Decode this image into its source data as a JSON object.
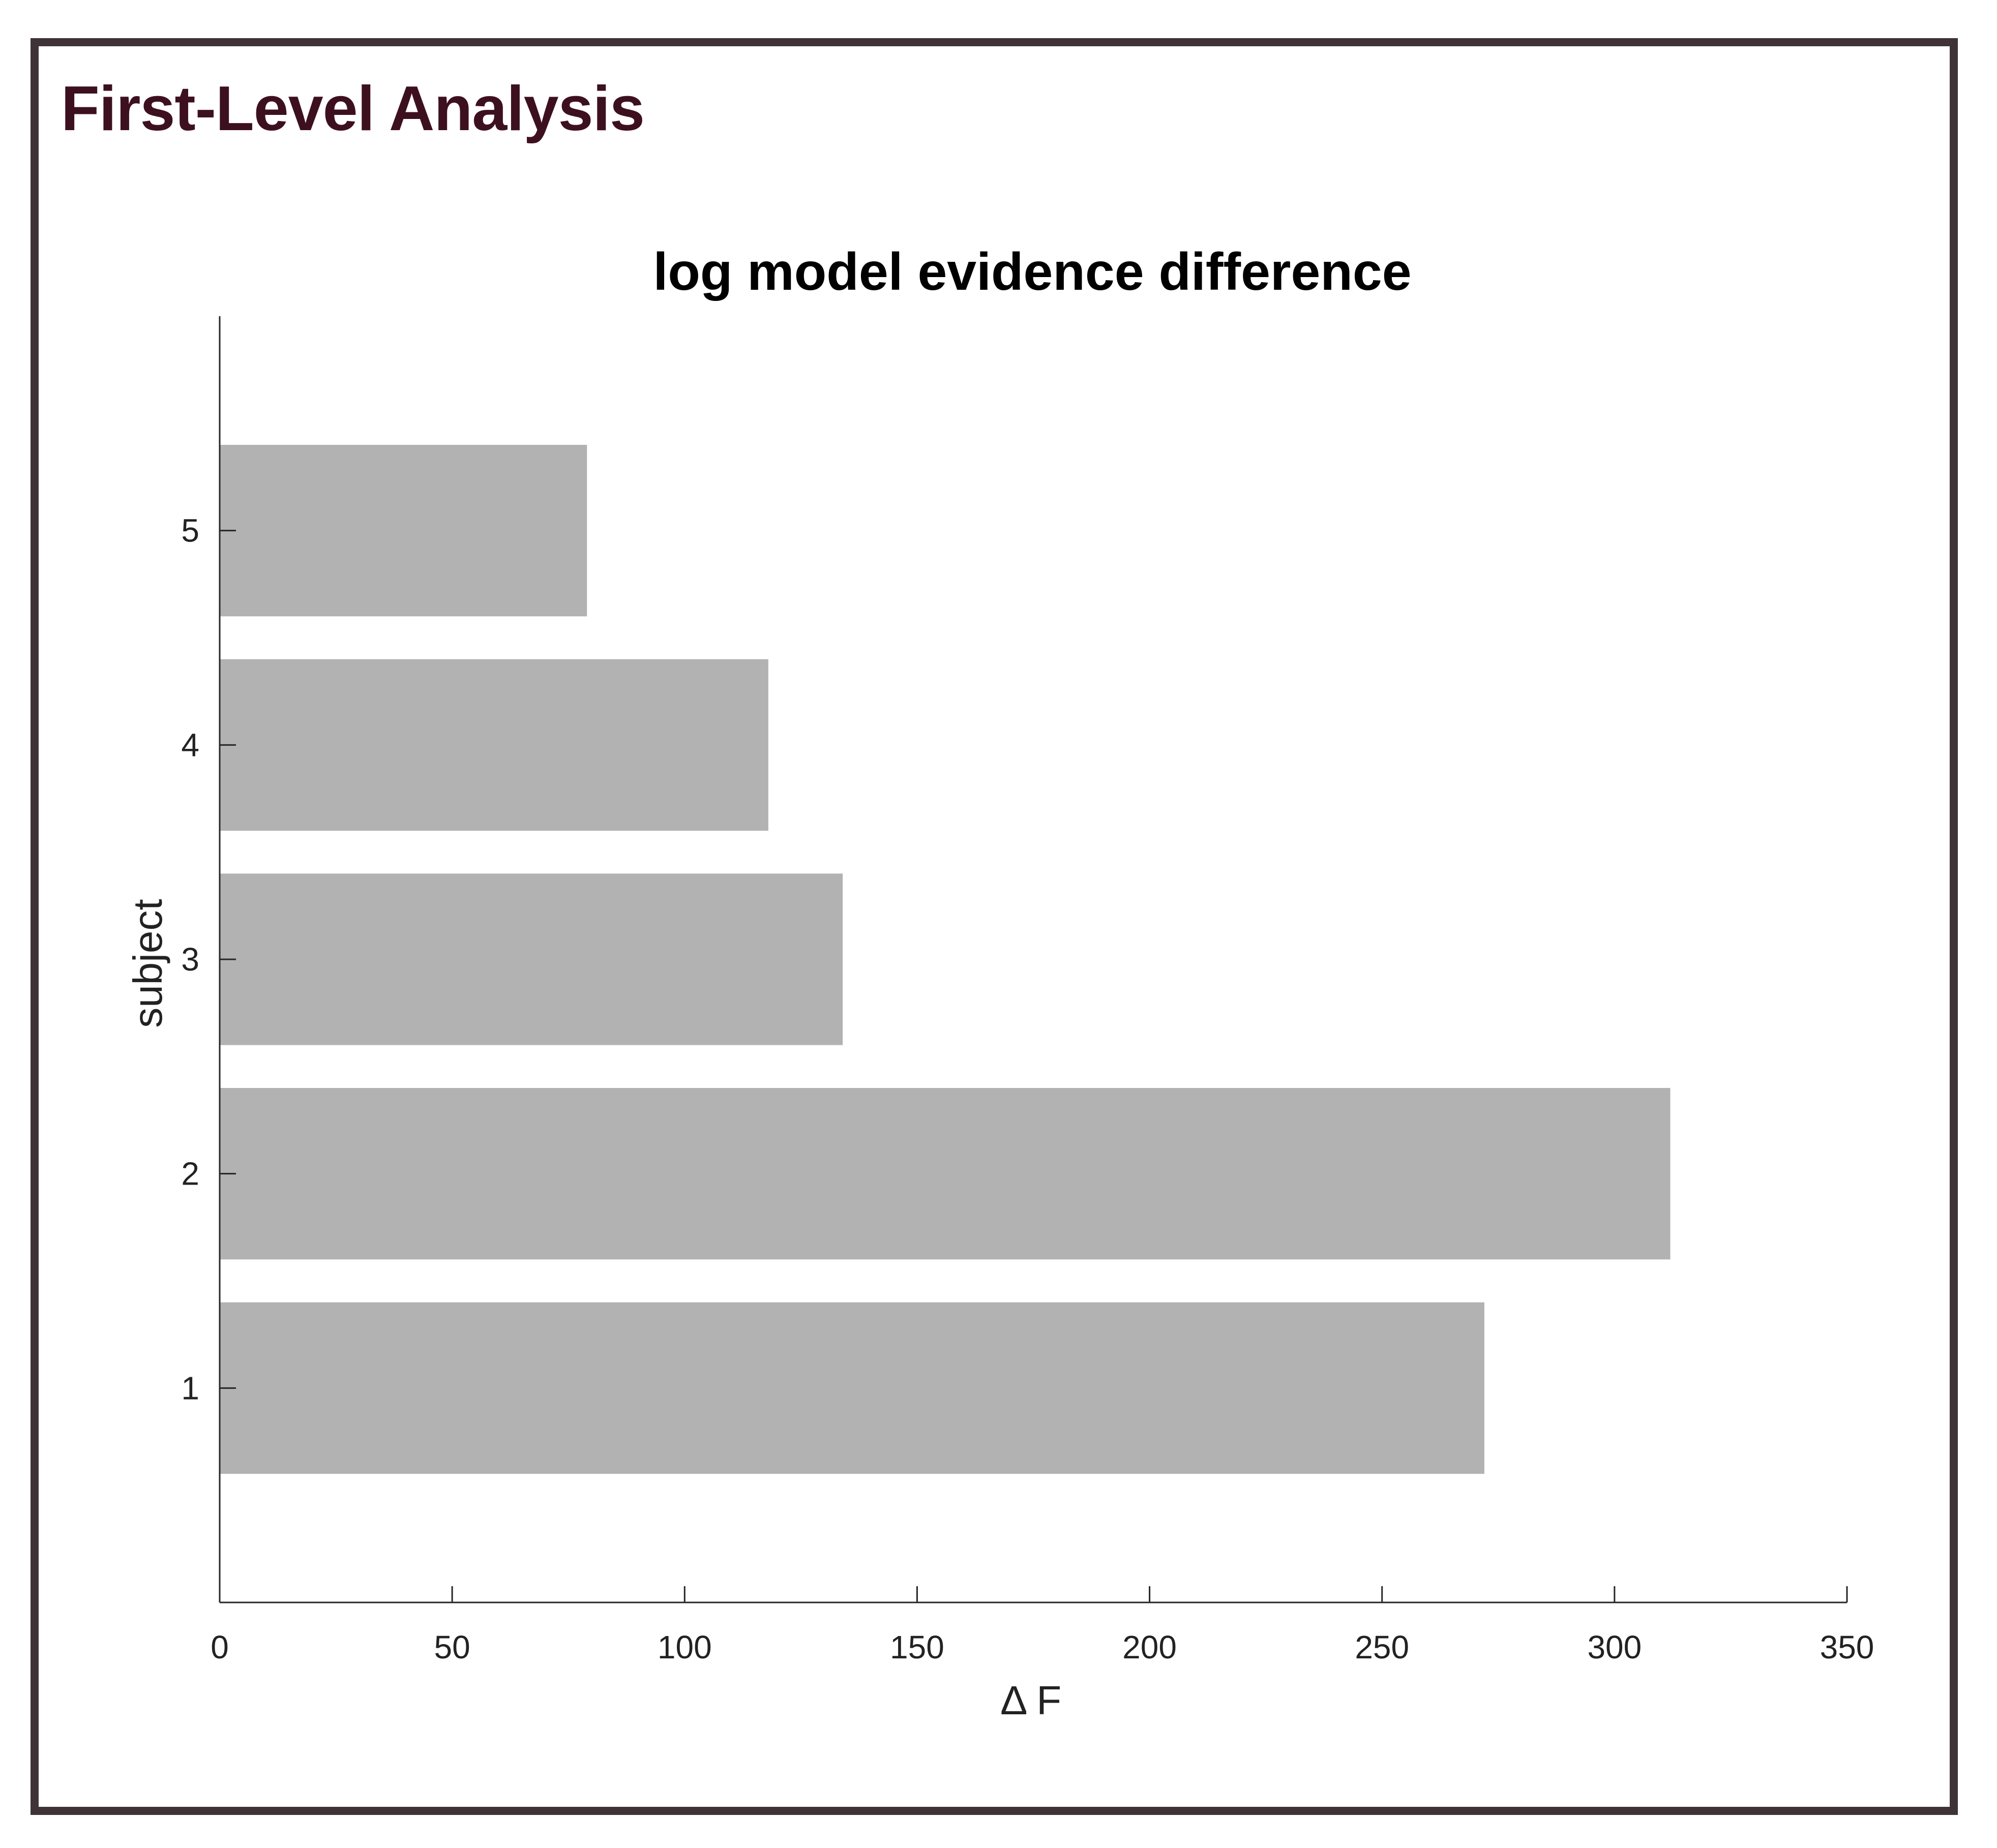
{
  "slide": {
    "title": "First-Level Analysis",
    "title_color": "#3d1020",
    "frame_color": "#3f3338"
  },
  "chart_data": {
    "type": "bar",
    "orientation": "horizontal",
    "title": "log model evidence difference",
    "xlabel": "Δ F",
    "ylabel": "subject",
    "categories": [
      "1",
      "2",
      "3",
      "4",
      "5"
    ],
    "values": [
      272,
      312,
      134,
      118,
      79
    ],
    "xlim": [
      0,
      350
    ],
    "ylim": [
      0,
      6
    ],
    "xticks": [
      0,
      50,
      100,
      150,
      200,
      250,
      300,
      350
    ],
    "yticks": [
      1,
      2,
      3,
      4,
      5
    ],
    "bar_color": "#b2b2b2",
    "grid": false,
    "legend": "none"
  }
}
